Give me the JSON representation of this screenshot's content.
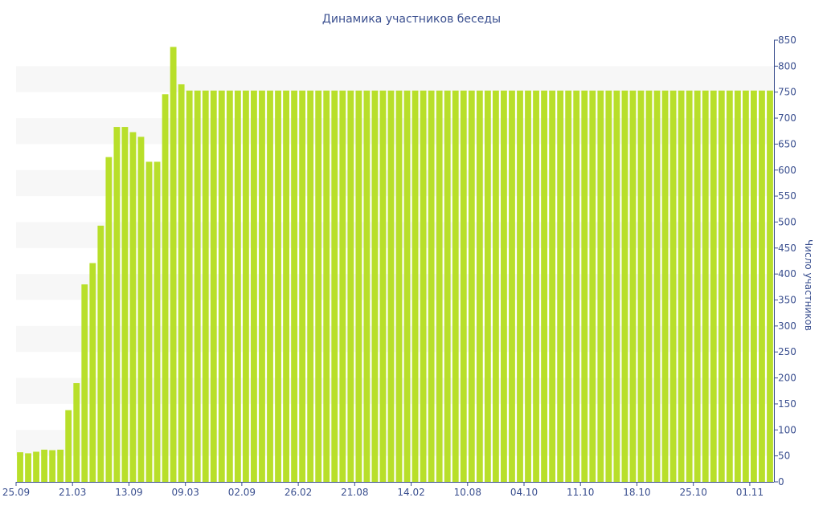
{
  "chart_data": {
    "type": "bar",
    "title": "Динамика участников беседы",
    "ylabel": "Число участников",
    "xlabel": "",
    "ylim": [
      0,
      850
    ],
    "y_ticks": [
      0,
      50,
      100,
      150,
      200,
      250,
      300,
      350,
      400,
      450,
      500,
      550,
      600,
      650,
      700,
      750,
      800,
      850
    ],
    "y_axis_position": "right",
    "grid": "alternating horizontal bands",
    "legend": "none",
    "x_tick_labels": [
      "25.09",
      "21.03",
      "13.09",
      "09.03",
      "02.09",
      "26.02",
      "21.08",
      "14.02",
      "10.08",
      "04.10",
      "11.10",
      "18.10",
      "25.10",
      "01.11"
    ],
    "x_tick_label_bar_index": [
      0,
      7,
      14,
      21,
      28,
      35,
      42,
      49,
      56,
      63,
      70,
      77,
      84,
      91
    ],
    "values": [
      57,
      55,
      58,
      62,
      61,
      62,
      138,
      190,
      380,
      421,
      493,
      625,
      683,
      683,
      673,
      664,
      616,
      616,
      746,
      837,
      765,
      753,
      753,
      753,
      753,
      753,
      753,
      753,
      753,
      753,
      753,
      753,
      753,
      753,
      753,
      753,
      753,
      753,
      753,
      753,
      753,
      753,
      753,
      753,
      753,
      753,
      753,
      753,
      753,
      753,
      753,
      753,
      753,
      753,
      753,
      753,
      753,
      753,
      753,
      753,
      753,
      753,
      753,
      753,
      753,
      753,
      753,
      753,
      753,
      753,
      753,
      753,
      753,
      753,
      753,
      753,
      753,
      753,
      753,
      753,
      753,
      753,
      753,
      753,
      753,
      753,
      753,
      753,
      753,
      753,
      753,
      753,
      753,
      753
    ],
    "colors": {
      "bar": "#b8df2a",
      "text": "#3a4f8f",
      "band": "#f7f7f7",
      "axis": "#3a4f8f"
    }
  }
}
